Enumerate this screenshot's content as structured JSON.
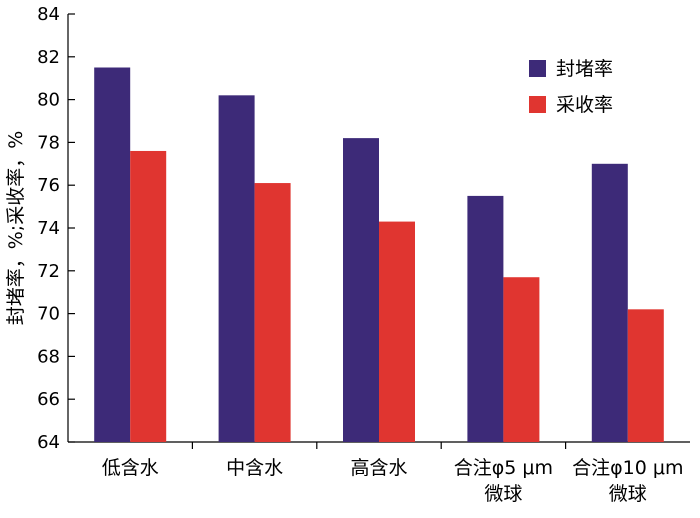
{
  "chart_data": {
    "type": "bar",
    "title": "",
    "xlabel": "",
    "ylabel": "封堵率，%;采收率，%",
    "ylim": [
      64,
      84
    ],
    "yticks": [
      64,
      66,
      68,
      70,
      72,
      74,
      76,
      78,
      80,
      82,
      84
    ],
    "grid": false,
    "legend_position": "top-right",
    "categories": [
      [
        "低含水"
      ],
      [
        "中含水"
      ],
      [
        "高含水"
      ],
      [
        "合注φ5 μm",
        "微球"
      ],
      [
        "合注φ10 μm",
        "微球"
      ]
    ],
    "series": [
      {
        "name": "封堵率",
        "color": "#3d2a78",
        "values": [
          81.5,
          80.2,
          78.2,
          75.5,
          77.0
        ]
      },
      {
        "name": "采收率",
        "color": "#e03530",
        "values": [
          77.6,
          76.1,
          74.3,
          71.7,
          70.2
        ]
      }
    ]
  }
}
